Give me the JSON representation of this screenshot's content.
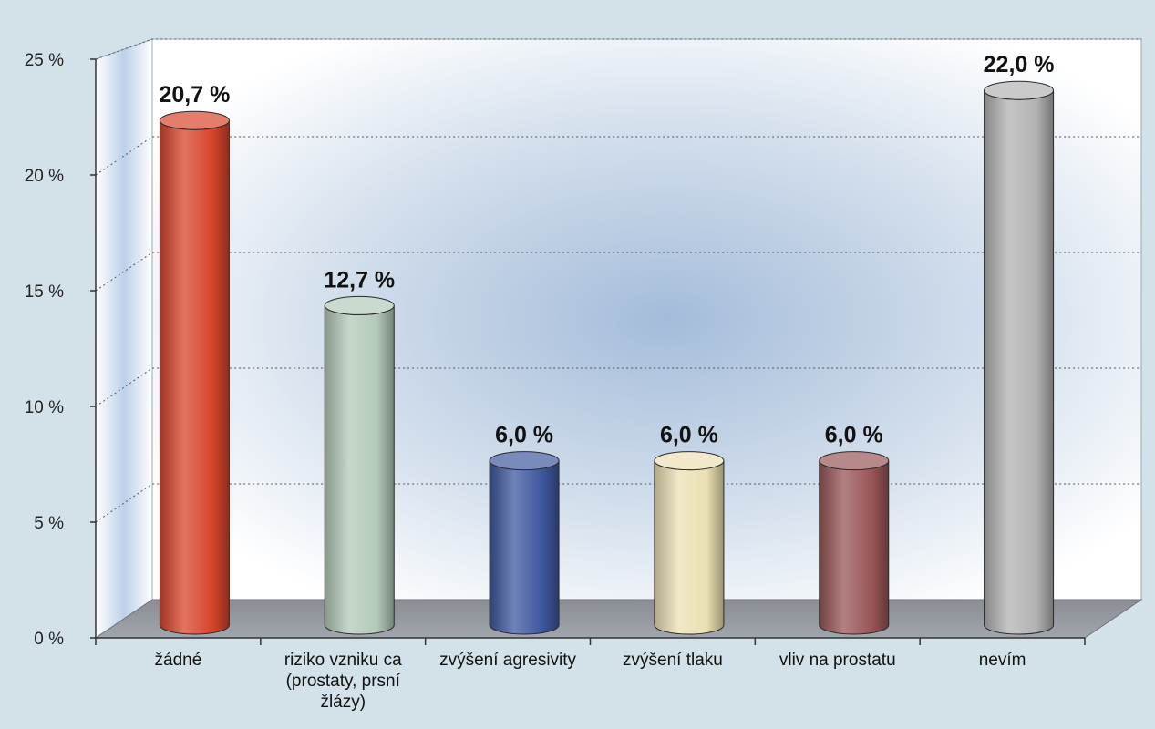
{
  "chart_data": {
    "type": "bar",
    "title": "",
    "xlabel": "",
    "ylabel": "",
    "ylim": [
      0,
      25
    ],
    "grid": true,
    "y_ticks": [
      "0 %",
      "5 %",
      "10 %",
      "15 %",
      "20 %",
      "25 %"
    ],
    "categories": [
      [
        "žádné"
      ],
      [
        "riziko vzniku ca",
        "(prostaty, prsní",
        "žlázy)"
      ],
      [
        "zvýšení agresivity"
      ],
      [
        "zvýšení tlaku"
      ],
      [
        "vliv na prostatu"
      ],
      [
        "nevím"
      ]
    ],
    "values": [
      20.7,
      12.7,
      6.0,
      6.0,
      6.0,
      22.0
    ],
    "value_labels": [
      "20,7 %",
      "12,7 %",
      "6,0 %",
      "6,0 %",
      "6,0 %",
      "22,0 %"
    ],
    "colors": [
      "#d8452c",
      "#b4cab9",
      "#3f58a0",
      "#ebe0b3",
      "#9a5658",
      "#b3b3b3"
    ]
  }
}
